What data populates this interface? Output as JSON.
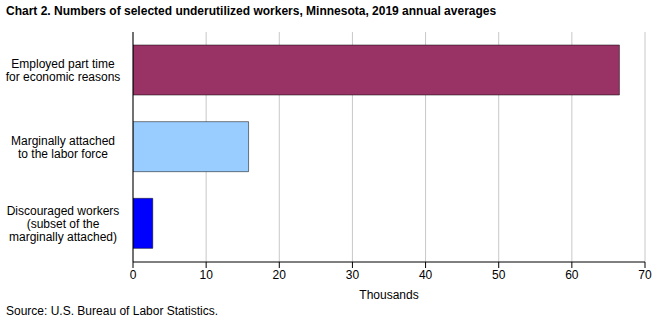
{
  "chart_data": {
    "type": "bar",
    "title": "Chart 2. Numbers of selected underutilized workers, Minnesota, 2019 annual averages",
    "categories": [
      "Employed part time for economic reasons",
      "Marginally attached to the labor force",
      "Discouraged workers (subset of the marginally attached)"
    ],
    "values": [
      66.5,
      15.8,
      2.7
    ],
    "colors": [
      "#993366",
      "#99ccff",
      "#0000ff"
    ],
    "orientation": "horizontal",
    "xlim": [
      0,
      70
    ],
    "xticks": [
      0,
      10,
      20,
      30,
      40,
      50,
      60,
      70
    ],
    "xlabel": "Thousands",
    "grid": true,
    "source": "Source: U.S. Bureau of Labor Statistics."
  }
}
